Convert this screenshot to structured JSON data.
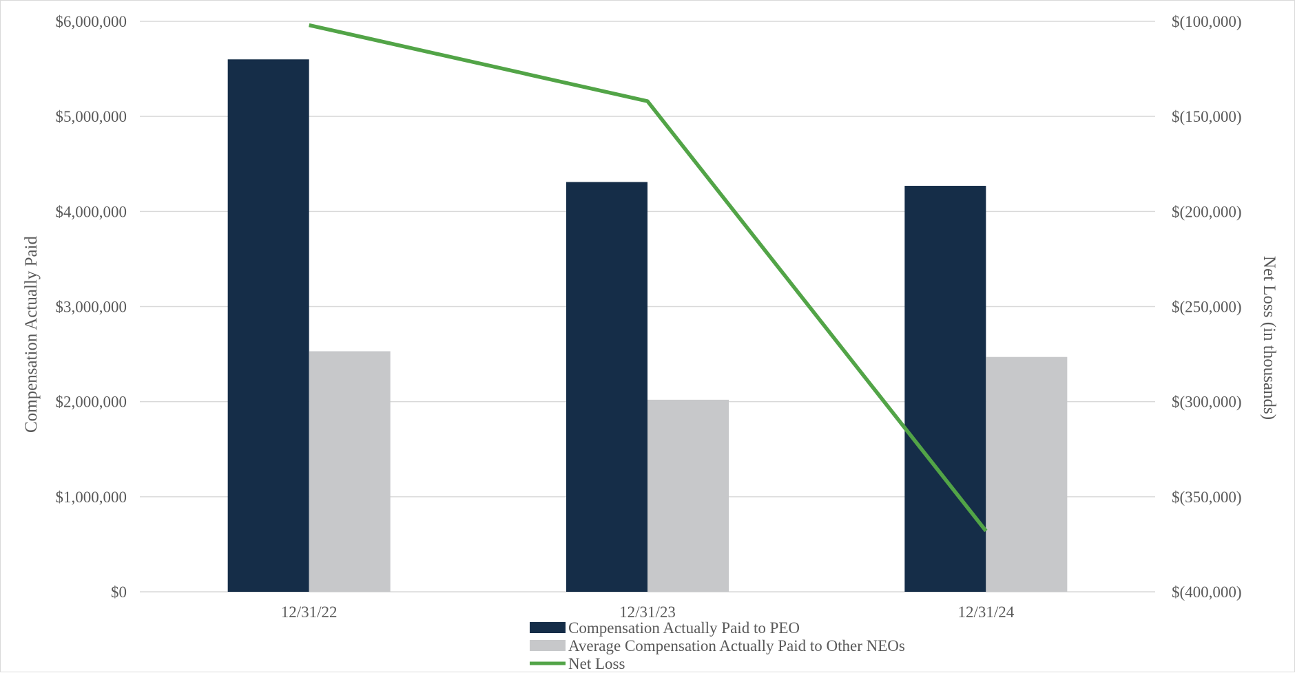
{
  "chart_data": {
    "type": "bar",
    "categories": [
      "12/31/22",
      "12/31/23",
      "12/31/24"
    ],
    "series": [
      {
        "name": "Compensation Actually Paid to PEO",
        "type": "bar",
        "axis": "left",
        "color": "#152d48",
        "values": [
          5600000,
          4310000,
          4270000
        ]
      },
      {
        "name": "Average Compensation Actually Paid to Other NEOs",
        "type": "bar",
        "axis": "left",
        "color": "#c7c8ca",
        "values": [
          2530000,
          2020000,
          2470000
        ]
      },
      {
        "name": "Net Loss",
        "type": "line",
        "axis": "right",
        "color": "#52a447",
        "values": [
          -102000,
          -142000,
          -368000
        ]
      }
    ],
    "ylabel": "Compensation Actually Paid",
    "y2label": "Net Loss (in thousands)",
    "ylim": [
      0,
      6000000
    ],
    "y2lim": [
      -400000,
      -100000
    ],
    "yticks": [
      "$0",
      "$1,000,000",
      "$2,000,000",
      "$3,000,000",
      "$4,000,000",
      "$5,000,000",
      "$6,000,000"
    ],
    "y2ticks": [
      "$(400,000)",
      "$(350,000)",
      "$(300,000)",
      "$(250,000)",
      "$(200,000)",
      "$(150,000)",
      "$(100,000)"
    ],
    "grid": true,
    "legend_position": "bottom"
  }
}
